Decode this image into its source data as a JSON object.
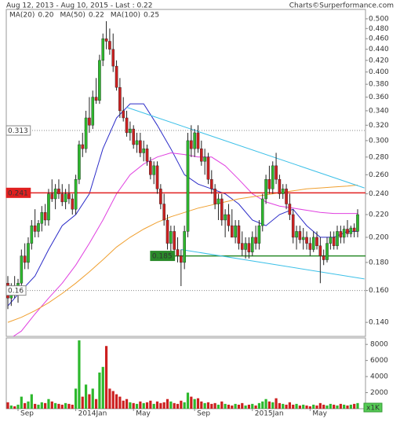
{
  "chart_data": [
    {
      "type": "candlestick",
      "title": "Aug 12, 2013 - Aug 10, 2015 - Last : 0.22",
      "source": "Charts©Surperformance.com",
      "log_y": true,
      "up_color": "#2db82d",
      "down_color": "#cc2020",
      "ylim": [
        0.132,
        0.52
      ],
      "yticks": [
        {
          "value": 0.14,
          "label": "0.140"
        },
        {
          "value": 0.16,
          "label": "0.160"
        },
        {
          "value": 0.18,
          "label": "0.180"
        },
        {
          "value": 0.2,
          "label": "0.200"
        },
        {
          "value": 0.22,
          "label": "0.220"
        },
        {
          "value": 0.24,
          "label": "0.240"
        },
        {
          "value": 0.26,
          "label": "0.260"
        },
        {
          "value": 0.28,
          "label": "0.280"
        },
        {
          "value": 0.3,
          "label": "0.300"
        },
        {
          "value": 0.32,
          "label": "0.320"
        },
        {
          "value": 0.34,
          "label": "0.340"
        },
        {
          "value": 0.36,
          "label": "0.360"
        },
        {
          "value": 0.38,
          "label": "0.380"
        },
        {
          "value": 0.4,
          "label": "0.400"
        },
        {
          "value": 0.42,
          "label": "0.420"
        },
        {
          "value": 0.44,
          "label": "0.440"
        },
        {
          "value": 0.46,
          "label": "0.460"
        },
        {
          "value": 0.48,
          "label": "0.480"
        },
        {
          "value": 0.5,
          "label": "0.500"
        }
      ],
      "ohlc": [
        [
          0.165,
          0.17,
          0.148,
          0.155
        ],
        [
          0.155,
          0.165,
          0.15,
          0.16
        ],
        [
          0.16,
          0.17,
          0.155,
          0.158
        ],
        [
          0.158,
          0.168,
          0.152,
          0.165
        ],
        [
          0.165,
          0.19,
          0.16,
          0.185
        ],
        [
          0.185,
          0.195,
          0.175,
          0.18
        ],
        [
          0.18,
          0.2,
          0.175,
          0.195
        ],
        [
          0.195,
          0.215,
          0.19,
          0.21
        ],
        [
          0.21,
          0.225,
          0.2,
          0.205
        ],
        [
          0.205,
          0.215,
          0.2,
          0.212
        ],
        [
          0.212,
          0.228,
          0.205,
          0.222
        ],
        [
          0.222,
          0.23,
          0.21,
          0.215
        ],
        [
          0.215,
          0.245,
          0.21,
          0.24
        ],
        [
          0.24,
          0.255,
          0.232,
          0.235
        ],
        [
          0.235,
          0.25,
          0.225,
          0.245
        ],
        [
          0.245,
          0.255,
          0.235,
          0.24
        ],
        [
          0.24,
          0.25,
          0.228,
          0.232
        ],
        [
          0.232,
          0.245,
          0.225,
          0.24
        ],
        [
          0.24,
          0.25,
          0.23,
          0.235
        ],
        [
          0.235,
          0.24,
          0.22,
          0.225
        ],
        [
          0.225,
          0.26,
          0.22,
          0.255
        ],
        [
          0.255,
          0.3,
          0.25,
          0.295
        ],
        [
          0.295,
          0.31,
          0.28,
          0.29
        ],
        [
          0.29,
          0.34,
          0.285,
          0.33
        ],
        [
          0.33,
          0.36,
          0.31,
          0.32
        ],
        [
          0.32,
          0.37,
          0.315,
          0.36
        ],
        [
          0.36,
          0.39,
          0.35,
          0.355
        ],
        [
          0.355,
          0.43,
          0.35,
          0.42
        ],
        [
          0.42,
          0.47,
          0.41,
          0.46
        ],
        [
          0.46,
          0.495,
          0.44,
          0.455
        ],
        [
          0.455,
          0.48,
          0.43,
          0.44
        ],
        [
          0.44,
          0.47,
          0.4,
          0.41
        ],
        [
          0.41,
          0.42,
          0.37,
          0.375
        ],
        [
          0.375,
          0.39,
          0.33,
          0.34
        ],
        [
          0.34,
          0.36,
          0.325,
          0.33
        ],
        [
          0.33,
          0.34,
          0.305,
          0.31
        ],
        [
          0.31,
          0.325,
          0.3,
          0.315
        ],
        [
          0.315,
          0.32,
          0.29,
          0.295
        ],
        [
          0.295,
          0.31,
          0.285,
          0.3
        ],
        [
          0.3,
          0.31,
          0.28,
          0.285
        ],
        [
          0.285,
          0.3,
          0.275,
          0.29
        ],
        [
          0.29,
          0.295,
          0.27,
          0.275
        ],
        [
          0.275,
          0.28,
          0.255,
          0.26
        ],
        [
          0.26,
          0.275,
          0.25,
          0.27
        ],
        [
          0.27,
          0.275,
          0.24,
          0.245
        ],
        [
          0.245,
          0.25,
          0.225,
          0.23
        ],
        [
          0.23,
          0.24,
          0.21,
          0.215
        ],
        [
          0.215,
          0.22,
          0.19,
          0.195
        ],
        [
          0.195,
          0.21,
          0.185,
          0.205
        ],
        [
          0.205,
          0.21,
          0.185,
          0.19
        ],
        [
          0.19,
          0.2,
          0.18,
          0.185
        ],
        [
          0.185,
          0.19,
          0.163,
          0.18
        ],
        [
          0.18,
          0.21,
          0.175,
          0.205
        ],
        [
          0.205,
          0.31,
          0.2,
          0.3
        ],
        [
          0.3,
          0.32,
          0.28,
          0.29
        ],
        [
          0.29,
          0.315,
          0.28,
          0.31
        ],
        [
          0.31,
          0.32,
          0.285,
          0.29
        ],
        [
          0.29,
          0.3,
          0.27,
          0.275
        ],
        [
          0.275,
          0.29,
          0.26,
          0.28
        ],
        [
          0.28,
          0.285,
          0.25,
          0.255
        ],
        [
          0.255,
          0.265,
          0.24,
          0.245
        ],
        [
          0.245,
          0.25,
          0.225,
          0.23
        ],
        [
          0.23,
          0.24,
          0.215,
          0.235
        ],
        [
          0.235,
          0.24,
          0.21,
          0.215
        ],
        [
          0.215,
          0.225,
          0.2,
          0.22
        ],
        [
          0.22,
          0.23,
          0.205,
          0.21
        ],
        [
          0.21,
          0.225,
          0.2,
          0.2
        ],
        [
          0.2,
          0.215,
          0.195,
          0.21
        ],
        [
          0.21,
          0.215,
          0.19,
          0.195
        ],
        [
          0.195,
          0.205,
          0.185,
          0.19
        ],
        [
          0.19,
          0.2,
          0.183,
          0.195
        ],
        [
          0.195,
          0.2,
          0.183,
          0.188
        ],
        [
          0.188,
          0.205,
          0.185,
          0.2
        ],
        [
          0.2,
          0.21,
          0.19,
          0.195
        ],
        [
          0.195,
          0.215,
          0.19,
          0.21
        ],
        [
          0.21,
          0.24,
          0.205,
          0.235
        ],
        [
          0.235,
          0.26,
          0.23,
          0.255
        ],
        [
          0.255,
          0.27,
          0.24,
          0.245
        ],
        [
          0.245,
          0.275,
          0.24,
          0.27
        ],
        [
          0.27,
          0.285,
          0.25,
          0.255
        ],
        [
          0.255,
          0.26,
          0.235,
          0.24
        ],
        [
          0.24,
          0.25,
          0.235,
          0.245
        ],
        [
          0.245,
          0.25,
          0.225,
          0.23
        ],
        [
          0.23,
          0.24,
          0.215,
          0.22
        ],
        [
          0.22,
          0.225,
          0.195,
          0.2
        ],
        [
          0.2,
          0.21,
          0.19,
          0.205
        ],
        [
          0.205,
          0.21,
          0.195,
          0.198
        ],
        [
          0.198,
          0.208,
          0.19,
          0.2
        ],
        [
          0.2,
          0.205,
          0.19,
          0.195
        ],
        [
          0.195,
          0.2,
          0.185,
          0.19
        ],
        [
          0.19,
          0.205,
          0.188,
          0.2
        ],
        [
          0.2,
          0.205,
          0.19,
          0.193
        ],
        [
          0.193,
          0.2,
          0.165,
          0.185
        ],
        [
          0.185,
          0.19,
          0.178,
          0.182
        ],
        [
          0.182,
          0.2,
          0.18,
          0.195
        ],
        [
          0.195,
          0.205,
          0.19,
          0.2
        ],
        [
          0.2,
          0.205,
          0.19,
          0.193
        ],
        [
          0.193,
          0.21,
          0.19,
          0.205
        ],
        [
          0.205,
          0.21,
          0.195,
          0.2
        ],
        [
          0.2,
          0.21,
          0.195,
          0.207
        ],
        [
          0.207,
          0.215,
          0.2,
          0.203
        ],
        [
          0.203,
          0.21,
          0.2,
          0.208
        ],
        [
          0.208,
          0.212,
          0.2,
          0.205
        ],
        [
          0.205,
          0.225,
          0.2,
          0.22
        ]
      ],
      "series": [
        {
          "name": "MA(20)",
          "last_label": "0.20",
          "color": "#2b2bc8",
          "x": [
            0,
            4,
            8,
            12,
            16,
            20,
            24,
            28,
            32,
            36,
            40,
            44,
            48,
            52,
            56,
            60,
            64,
            68,
            72,
            76,
            80,
            84,
            88,
            92,
            96,
            100,
            103
          ],
          "values": [
            0.15,
            0.16,
            0.17,
            0.19,
            0.21,
            0.22,
            0.24,
            0.29,
            0.33,
            0.35,
            0.35,
            0.32,
            0.29,
            0.26,
            0.25,
            0.245,
            0.24,
            0.23,
            0.215,
            0.21,
            0.22,
            0.225,
            0.21,
            0.2,
            0.2,
            0.205,
            0.205
          ]
        },
        {
          "name": "MA(50)",
          "last_label": "0.22",
          "color": "#e040e0",
          "x": [
            0,
            4,
            8,
            12,
            16,
            20,
            24,
            28,
            32,
            36,
            40,
            44,
            48,
            52,
            56,
            60,
            64,
            68,
            72,
            76,
            80,
            84,
            88,
            92,
            96,
            100,
            103
          ],
          "values": [
            0.13,
            0.135,
            0.145,
            0.155,
            0.165,
            0.178,
            0.195,
            0.215,
            0.24,
            0.26,
            0.272,
            0.28,
            0.285,
            0.283,
            0.28,
            0.28,
            0.27,
            0.255,
            0.24,
            0.232,
            0.228,
            0.226,
            0.224,
            0.222,
            0.221,
            0.221,
            0.221
          ]
        },
        {
          "name": "MA(100)",
          "last_label": "0.25",
          "color": "#f0a030",
          "x": [
            0,
            4,
            8,
            12,
            16,
            20,
            24,
            28,
            32,
            36,
            40,
            44,
            48,
            52,
            56,
            60,
            64,
            68,
            72,
            76,
            80,
            84,
            88,
            92,
            96,
            100,
            103
          ],
          "values": [
            0.14,
            0.143,
            0.147,
            0.152,
            0.158,
            0.165,
            0.173,
            0.182,
            0.192,
            0.2,
            0.207,
            0.213,
            0.218,
            0.222,
            0.226,
            0.229,
            0.232,
            0.235,
            0.237,
            0.239,
            0.241,
            0.243,
            0.245,
            0.246,
            0.247,
            0.248,
            0.249
          ]
        }
      ],
      "hlines": [
        {
          "value": 0.313,
          "color": "#888888",
          "style": "dotted"
        },
        {
          "value": 0.241,
          "color": "#e02020",
          "style": "solid"
        },
        {
          "value": 0.185,
          "color": "#2a8a2a",
          "style": "solid",
          "start": 42
        },
        {
          "value": 0.16,
          "color": "#888888",
          "style": "dotted"
        }
      ],
      "trendlines": [
        {
          "color": "#3cc0e8",
          "x": [
            35,
            105
          ],
          "y": [
            0.345,
            0.246
          ]
        },
        {
          "color": "#3cc0e8",
          "x": [
            51,
            105
          ],
          "y": [
            0.19,
            0.168
          ]
        }
      ]
    },
    {
      "type": "bar",
      "unit": "x1K",
      "ylim": [
        0,
        8800
      ],
      "yticks": [
        2000,
        4000,
        6000,
        8000
      ],
      "categories": [
        null,
        null,
        null,
        "Sep",
        null,
        null,
        null,
        null,
        null,
        null,
        null,
        null,
        null,
        null,
        null,
        null,
        null,
        null,
        null,
        null,
        "2014Jan",
        null,
        null,
        null,
        null,
        null,
        null,
        null,
        null,
        null,
        null,
        null,
        null,
        null,
        null,
        null,
        null,
        "May",
        null,
        null,
        null,
        null,
        null,
        null,
        null,
        null,
        null,
        null,
        null,
        null,
        null,
        null,
        null,
        null,
        null,
        "Sep",
        null,
        null,
        null,
        null,
        null,
        null,
        null,
        null,
        null,
        null,
        null,
        null,
        null,
        null,
        null,
        null,
        "2015Jan",
        null,
        null,
        null,
        null,
        null,
        null,
        null,
        null,
        null,
        null,
        null,
        null,
        null,
        null,
        null,
        null,
        "May",
        null,
        null,
        null,
        null,
        null,
        null,
        null,
        null,
        null,
        null,
        null,
        null,
        null,
        null
      ],
      "values": [
        800,
        400,
        300,
        500,
        1500,
        700,
        900,
        1800,
        600,
        500,
        800,
        700,
        1200,
        900,
        700,
        600,
        500,
        700,
        600,
        500,
        2500,
        8500,
        1500,
        3000,
        1800,
        2500,
        1200,
        4500,
        5200,
        7800,
        2500,
        2200,
        1800,
        1500,
        1000,
        1200,
        800,
        700,
        600,
        900,
        700,
        800,
        1000,
        600,
        900,
        700,
        800,
        1200,
        900,
        700,
        600,
        1000,
        800,
        2000,
        1500,
        1200,
        1300,
        900,
        700,
        800,
        600,
        700,
        500,
        900,
        600,
        500,
        400,
        600,
        500,
        700,
        400,
        500,
        600,
        400,
        700,
        900,
        1200,
        900,
        800,
        1300,
        700,
        600,
        500,
        800,
        500,
        600,
        400,
        500,
        400,
        300,
        500,
        400,
        700,
        500,
        400,
        600,
        500,
        400,
        600,
        500,
        400,
        500,
        600,
        700
      ]
    }
  ]
}
